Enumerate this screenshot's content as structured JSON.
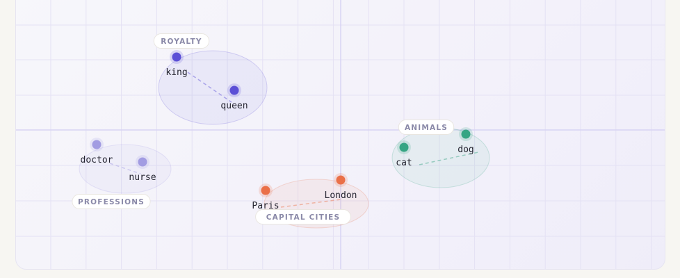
{
  "colors": {
    "royalty": "#5b4fd6",
    "professions": "#a29ce2",
    "capitals": "#ea7048",
    "animals": "#35a583",
    "grid": "#e4e1f4",
    "axis": "#d8d4f3"
  },
  "clusters": [
    {
      "label": "ROYALTY",
      "color_key": "royalty",
      "words": [
        "king",
        "queen"
      ]
    },
    {
      "label": "PROFESSIONS",
      "color_key": "professions",
      "words": [
        "doctor",
        "nurse"
      ]
    },
    {
      "label": "CAPITAL CITIES",
      "color_key": "capitals",
      "words": [
        "Paris",
        "London"
      ]
    },
    {
      "label": "ANIMALS",
      "color_key": "animals",
      "words": [
        "cat",
        "dog"
      ]
    }
  ]
}
